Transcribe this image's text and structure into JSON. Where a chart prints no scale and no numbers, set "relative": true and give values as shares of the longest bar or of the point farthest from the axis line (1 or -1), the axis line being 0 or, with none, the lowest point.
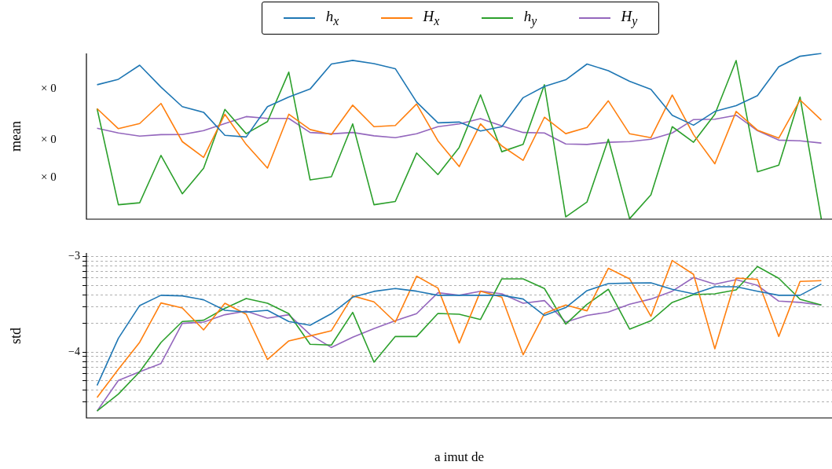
{
  "chart_data": [
    {
      "type": "line",
      "ylabel": "mean",
      "relative": true,
      "legend": "top",
      "marker": "none",
      "line_style": "solid",
      "tick_labels": false,
      "categories": [
        null,
        null,
        null,
        null,
        null,
        null,
        null,
        null,
        null,
        null,
        null,
        null,
        null,
        null,
        null,
        null,
        null,
        null,
        null,
        null,
        null,
        null,
        null,
        null,
        null,
        null,
        null,
        null,
        null,
        null,
        null,
        null,
        null,
        null,
        null
      ],
      "annotations": [
        "× 0",
        "× 0",
        "× 0"
      ],
      "series": [
        {
          "name": "h$_{x}$",
          "color": "#1f77b4",
          "values": [
            0.811,
            0.844,
            0.929,
            0.797,
            0.679,
            0.645,
            0.506,
            0.496,
            0.679,
            0.737,
            0.785,
            0.936,
            0.958,
            0.938,
            0.908,
            0.707,
            0.581,
            0.586,
            0.532,
            0.558,
            0.733,
            0.801,
            0.841,
            0.936,
            0.896,
            0.832,
            0.783,
            0.627,
            0.567,
            0.65,
            0.685,
            0.745,
            0.919,
            0.983,
            1
          ]
        },
        {
          "name": "H$_{x}$",
          "color": "#ff7f0e",
          "values": [
            0.667,
            0.546,
            0.577,
            0.698,
            0.468,
            0.373,
            0.633,
            0.451,
            0.308,
            0.633,
            0.541,
            0.511,
            0.688,
            0.558,
            0.565,
            0.695,
            0.473,
            0.317,
            0.575,
            0.442,
            0.355,
            0.615,
            0.516,
            0.553,
            0.714,
            0.515,
            0.492,
            0.749,
            0.51,
            0.334,
            0.65,
            0.537,
            0.489,
            0.719,
            0.598
          ]
        },
        {
          "name": "h$_{y}$",
          "color": "#2ca02c",
          "values": [
            0.667,
            0.087,
            0.099,
            0.385,
            0.153,
            0.307,
            0.662,
            0.516,
            0.589,
            0.887,
            0.237,
            0.256,
            0.575,
            0.087,
            0.107,
            0.399,
            0.269,
            0.433,
            0.75,
            0.407,
            0.451,
            0.811,
            0.014,
            0.104,
            0.482,
            0.003,
            0.147,
            0.558,
            0.464,
            0.633,
            0.957,
            0.286,
            0.326,
            0.737,
            0
          ]
        },
        {
          "name": "H$_{y}$",
          "color": "#9467bd",
          "values": [
            0.549,
            0.52,
            0.501,
            0.51,
            0.511,
            0.534,
            0.577,
            0.619,
            0.608,
            0.608,
            0.523,
            0.515,
            0.523,
            0.503,
            0.492,
            0.515,
            0.558,
            0.575,
            0.607,
            0.563,
            0.523,
            0.52,
            0.454,
            0.451,
            0.464,
            0.468,
            0.482,
            0.52,
            0.601,
            0.603,
            0.627,
            0.534,
            0.477,
            0.473,
            0.459
          ]
        }
      ]
    },
    {
      "type": "line",
      "ylabel": "std",
      "xlabel": "a imut de",
      "grid": "y",
      "marker": "none",
      "line_style": "solid",
      "tick_labels": "y",
      "categories": [
        null,
        null,
        null,
        null,
        null,
        null,
        null,
        null,
        null,
        null,
        null,
        null,
        null,
        null,
        null,
        null,
        null,
        null,
        null,
        null,
        null,
        null,
        null,
        null,
        null,
        null,
        null,
        null,
        null,
        null,
        null,
        null,
        null,
        null,
        null
      ],
      "ylim": [
        -4.688,
        -2.962
      ],
      "yticks": [
        {
          "value": -4.523,
          "label": null
        },
        {
          "value": -4.398,
          "label": null
        },
        {
          "value": -4.301,
          "label": null
        },
        {
          "value": -4.222,
          "label": null
        },
        {
          "value": -4.155,
          "label": null
        },
        {
          "value": -4.097,
          "label": null
        },
        {
          "value": -4.046,
          "label": null
        },
        {
          "value": -4,
          "label": "−4"
        },
        {
          "value": -3.699,
          "label": null
        },
        {
          "value": -3.523,
          "label": null
        },
        {
          "value": -3.398,
          "label": null
        },
        {
          "value": -3.301,
          "label": null
        },
        {
          "value": -3.222,
          "label": null
        },
        {
          "value": -3.155,
          "label": null
        },
        {
          "value": -3.097,
          "label": null
        },
        {
          "value": -3.046,
          "label": null
        },
        {
          "value": -3,
          "label": "−3"
        }
      ],
      "series": [
        {
          "color": "#1f77b4",
          "values": [
            -4.348,
            -3.855,
            -3.512,
            -3.405,
            -3.411,
            -3.452,
            -3.562,
            -3.581,
            -3.562,
            -3.679,
            -3.718,
            -3.597,
            -3.425,
            -3.364,
            -3.334,
            -3.362,
            -3.405,
            -3.405,
            -3.405,
            -3.405,
            -3.444,
            -3.616,
            -3.534,
            -3.356,
            -3.282,
            -3.277,
            -3.274,
            -3.342,
            -3.389,
            -3.315,
            -3.315,
            -3.362,
            -3.405,
            -3.405,
            -3.288
          ]
        },
        {
          "color": "#ff7f0e",
          "values": [
            -4.474,
            -4.178,
            -3.896,
            -3.485,
            -3.537,
            -3.767,
            -3.488,
            -3.603,
            -4.077,
            -3.882,
            -3.83,
            -3.775,
            -3.411,
            -3.474,
            -3.685,
            -3.205,
            -3.329,
            -3.904,
            -3.362,
            -3.425,
            -4.027,
            -3.595,
            -3.507,
            -3.567,
            -3.123,
            -3.233,
            -3.625,
            -3.041,
            -3.186,
            -3.964,
            -3.225,
            -3.238,
            -3.836,
            -3.26,
            -3.252
          ]
        },
        {
          "color": "#2ca02c",
          "values": [
            -4.616,
            -4.438,
            -4.205,
            -3.899,
            -3.679,
            -3.666,
            -3.542,
            -3.438,
            -3.488,
            -3.597,
            -3.918,
            -3.926,
            -3.584,
            -4.104,
            -3.836,
            -3.836,
            -3.595,
            -3.603,
            -3.658,
            -3.233,
            -3.233,
            -3.334,
            -3.707,
            -3.499,
            -3.342,
            -3.759,
            -3.671,
            -3.479,
            -3.397,
            -3.389,
            -3.348,
            -3.104,
            -3.227,
            -3.447,
            -3.507
          ]
        },
        {
          "color": "#9467bd",
          "values": [
            -4.616,
            -4.296,
            -4.205,
            -4.118,
            -3.699,
            -3.685,
            -3.608,
            -3.57,
            -3.644,
            -3.608,
            -3.816,
            -3.951,
            -3.844,
            -3.753,
            -3.671,
            -3.597,
            -3.378,
            -3.405,
            -3.362,
            -3.389,
            -3.488,
            -3.46,
            -3.685,
            -3.616,
            -3.581,
            -3.499,
            -3.444,
            -3.362,
            -3.219,
            -3.288,
            -3.241,
            -3.301,
            -3.466,
            -3.479,
            -3.507
          ]
        }
      ]
    }
  ]
}
